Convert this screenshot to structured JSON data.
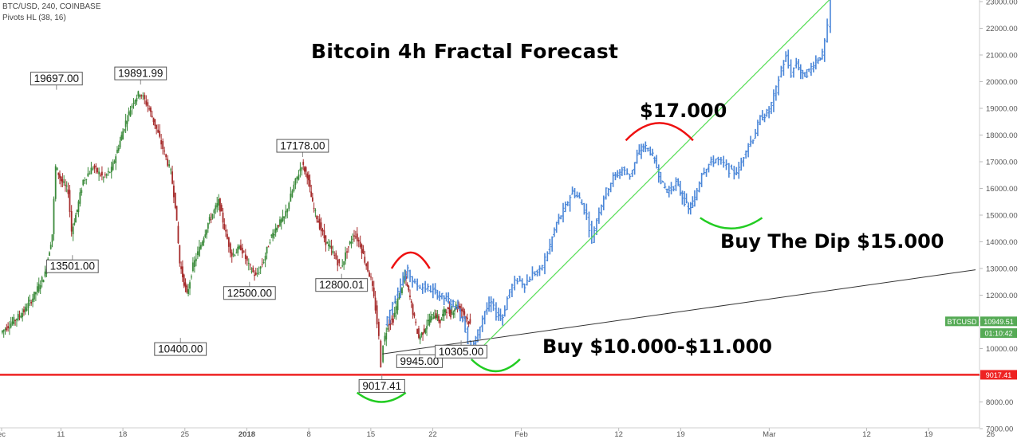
{
  "header": {
    "symbol_line": "BTC/USD, 240, COINBASE",
    "indicator_line": "Pivots HL (38, 16)"
  },
  "chart_data": {
    "type": "candlestick",
    "title": "Bitcoin 4h Fractal Forecast",
    "ylim": [
      6800,
      23000
    ],
    "y_ticks": [
      7000,
      8000,
      9000,
      10000,
      11000,
      12000,
      13000,
      14000,
      15000,
      16000,
      17000,
      18000,
      19000,
      20000,
      21000,
      22000,
      23000
    ],
    "y_tick_labels": [
      "7000.00",
      "8000.00",
      "9000.00",
      "10000.00",
      "11000.00",
      "12000.00",
      "13000.00",
      "14000.00",
      "15000.00",
      "16000.00",
      "17000.00",
      "18000.00",
      "19000.00",
      "20000.00",
      "21000.00",
      "22000.00",
      "23000.00"
    ],
    "x_ticks": [
      {
        "label": "ec",
        "x": 0,
        "bold": false
      },
      {
        "label": "11",
        "x": 6.7,
        "bold": false
      },
      {
        "label": "18",
        "x": 13.7,
        "bold": false
      },
      {
        "label": "25",
        "x": 20.7,
        "bold": false
      },
      {
        "label": "2018",
        "x": 27.7,
        "bold": true
      },
      {
        "label": "8",
        "x": 34.7,
        "bold": false
      },
      {
        "label": "15",
        "x": 41.7,
        "bold": false
      },
      {
        "label": "22",
        "x": 48.7,
        "bold": false
      },
      {
        "label": "Feb",
        "x": 58.7,
        "bold": false
      },
      {
        "label": "12",
        "x": 69.7,
        "bold": false
      },
      {
        "label": "19",
        "x": 76.7,
        "bold": false
      },
      {
        "label": "Mar",
        "x": 86.7,
        "bold": false
      },
      {
        "label": "12",
        "x": 97.7,
        "bold": false
      },
      {
        "label": "19",
        "x": 104.7,
        "bold": false
      },
      {
        "label": "26",
        "x": 111.7,
        "bold": false
      }
    ],
    "price_path": [
      [
        0.0,
        10600
      ],
      [
        1.3,
        11000
      ],
      [
        2.6,
        11400
      ],
      [
        3.6,
        11900
      ],
      [
        5.0,
        12800
      ],
      [
        5.8,
        14300
      ],
      [
        6.2,
        16800
      ],
      [
        6.8,
        16300
      ],
      [
        7.6,
        15900
      ],
      [
        8.0,
        14400
      ],
      [
        8.6,
        15200
      ],
      [
        9.3,
        16300
      ],
      [
        10.4,
        16800
      ],
      [
        11.6,
        16400
      ],
      [
        12.5,
        16700
      ],
      [
        13.3,
        17600
      ],
      [
        14.1,
        18500
      ],
      [
        15.0,
        19300
      ],
      [
        15.7,
        19600
      ],
      [
        16.6,
        19100
      ],
      [
        17.4,
        18400
      ],
      [
        18.3,
        17500
      ],
      [
        19.2,
        16600
      ],
      [
        19.7,
        15400
      ],
      [
        20.2,
        13200
      ],
      [
        21.0,
        12000
      ],
      [
        21.7,
        13100
      ],
      [
        22.6,
        13900
      ],
      [
        23.4,
        14700
      ],
      [
        24.6,
        15500
      ],
      [
        25.4,
        14300
      ],
      [
        26.1,
        13500
      ],
      [
        27.1,
        13800
      ],
      [
        28.0,
        13100
      ],
      [
        28.8,
        12700
      ],
      [
        29.7,
        13300
      ],
      [
        30.4,
        14100
      ],
      [
        31.2,
        14600
      ],
      [
        32.0,
        14900
      ],
      [
        33.1,
        16100
      ],
      [
        34.0,
        16900
      ],
      [
        34.6,
        16500
      ],
      [
        35.2,
        15400
      ],
      [
        36.0,
        14600
      ],
      [
        36.7,
        14000
      ],
      [
        37.5,
        13600
      ],
      [
        38.4,
        13000
      ],
      [
        39.1,
        13700
      ],
      [
        39.9,
        14300
      ],
      [
        40.6,
        13900
      ],
      [
        41.1,
        13300
      ],
      [
        41.8,
        12600
      ],
      [
        42.3,
        11500
      ],
      [
        42.7,
        10400
      ],
      [
        42.95,
        9400
      ],
      [
        43.2,
        10200
      ],
      [
        43.7,
        10900
      ],
      [
        44.3,
        11100
      ],
      [
        45.0,
        12000
      ],
      [
        45.6,
        12700
      ],
      [
        46.2,
        11900
      ],
      [
        46.7,
        11100
      ],
      [
        47.2,
        10400
      ],
      [
        47.8,
        10700
      ],
      [
        48.4,
        11100
      ],
      [
        49.0,
        11300
      ],
      [
        49.6,
        11000
      ],
      [
        50.2,
        11500
      ],
      [
        50.8,
        11300
      ],
      [
        51.4,
        11600
      ],
      [
        52.2,
        11400
      ],
      [
        53.0,
        10900
      ]
    ],
    "forecast_path": [
      [
        43.4,
        10900
      ],
      [
        44.3,
        11700
      ],
      [
        45.2,
        12500
      ],
      [
        46.0,
        12900
      ],
      [
        46.8,
        12400
      ],
      [
        47.7,
        12300
      ],
      [
        48.6,
        12200
      ],
      [
        49.6,
        12000
      ],
      [
        50.6,
        11800
      ],
      [
        51.4,
        11600
      ],
      [
        52.2,
        11100
      ],
      [
        52.8,
        10300
      ],
      [
        53.2,
        9900
      ],
      [
        53.9,
        10600
      ],
      [
        54.7,
        11400
      ],
      [
        55.4,
        11700
      ],
      [
        56.0,
        11300
      ],
      [
        56.7,
        11200
      ],
      [
        57.5,
        12200
      ],
      [
        58.4,
        12600
      ],
      [
        59.2,
        12400
      ],
      [
        60.1,
        12800
      ],
      [
        60.9,
        12900
      ],
      [
        61.8,
        13600
      ],
      [
        62.8,
        14700
      ],
      [
        63.8,
        15300
      ],
      [
        64.6,
        15900
      ],
      [
        65.4,
        15600
      ],
      [
        66.2,
        15000
      ],
      [
        66.8,
        14100
      ],
      [
        67.6,
        15200
      ],
      [
        68.4,
        15900
      ],
      [
        69.2,
        16400
      ],
      [
        70.2,
        16700
      ],
      [
        71.1,
        16500
      ],
      [
        71.9,
        17200
      ],
      [
        72.6,
        17600
      ],
      [
        73.4,
        17400
      ],
      [
        74.1,
        16800
      ],
      [
        74.8,
        16100
      ],
      [
        75.5,
        15900
      ],
      [
        76.3,
        16200
      ],
      [
        77.0,
        15700
      ],
      [
        77.7,
        15200
      ],
      [
        78.4,
        15600
      ],
      [
        79.2,
        16600
      ],
      [
        80.0,
        16900
      ],
      [
        80.8,
        17100
      ],
      [
        81.7,
        16900
      ],
      [
        82.6,
        16600
      ],
      [
        83.4,
        16700
      ],
      [
        84.2,
        17500
      ],
      [
        85.0,
        17900
      ],
      [
        85.8,
        18600
      ],
      [
        86.8,
        18900
      ],
      [
        87.6,
        19700
      ],
      [
        88.2,
        20500
      ],
      [
        88.7,
        20900
      ],
      [
        89.3,
        20300
      ],
      [
        89.9,
        20700
      ],
      [
        90.6,
        20200
      ],
      [
        91.3,
        20400
      ],
      [
        92.1,
        20800
      ],
      [
        92.8,
        21000
      ],
      [
        93.4,
        22000
      ],
      [
        93.8,
        23100
      ]
    ],
    "pivot_labels": [
      {
        "text": "19697.00",
        "x": 6.2,
        "y": 19697,
        "side": "above"
      },
      {
        "text": "19891.99",
        "x": 15.7,
        "y": 19892,
        "side": "above"
      },
      {
        "text": "17178.00",
        "x": 34.0,
        "y": 17178,
        "side": "above"
      },
      {
        "text": "13501.00",
        "x": 8.0,
        "y": 13501,
        "side": "below"
      },
      {
        "text": "10400.00",
        "x": 20.2,
        "y": 10400,
        "side": "below"
      },
      {
        "text": "12500.00",
        "x": 28.0,
        "y": 12500,
        "side": "below"
      },
      {
        "text": "12800.01",
        "x": 38.4,
        "y": 12800,
        "side": "below"
      },
      {
        "text": "9017.41",
        "x": 42.95,
        "y": 9017,
        "side": "below"
      },
      {
        "text": "9945.00",
        "x": 47.2,
        "y": 9945,
        "side": "below"
      },
      {
        "text": "10305.00",
        "x": 51.9,
        "y": 10305,
        "side": "below"
      }
    ],
    "support_level": 9017.41,
    "trend_line_black": [
      [
        43.0,
        9800
      ],
      [
        110.0,
        12950
      ]
    ],
    "trend_line_green": [
      [
        53.2,
        9700
      ],
      [
        93.9,
        23200
      ]
    ],
    "arcs": [
      {
        "color": "#22cc22",
        "x": 42.9,
        "y": 8350,
        "w": 5.5,
        "h": 350,
        "dir": "smile"
      },
      {
        "color": "#ee1111",
        "x": 46.2,
        "y": 13000,
        "w": 4.3,
        "h": 600,
        "dir": "frown"
      },
      {
        "color": "#22cc22",
        "x": 55.8,
        "y": 9600,
        "w": 5.5,
        "h": 450,
        "dir": "smile"
      },
      {
        "color": "#ee1111",
        "x": 74.3,
        "y": 17800,
        "w": 7.6,
        "h": 650,
        "dir": "frown"
      },
      {
        "color": "#22cc22",
        "x": 82.4,
        "y": 14900,
        "w": 7.0,
        "h": 400,
        "dir": "smile"
      }
    ],
    "annotations": {
      "a1": "$17.000",
      "a2": "Buy The Dip $15.000",
      "a3": "Buy $10.000-$11.000"
    },
    "price_tags": [
      {
        "text": "BTCUSD",
        "bg": "#55aa55"
      },
      {
        "text": "10949.51",
        "bg": "#55aa55"
      },
      {
        "text": "01:10:42",
        "bg": "#55aa55"
      },
      {
        "text": "9017.41",
        "bg": "#ee2222"
      }
    ],
    "colors": {
      "up": "#3a8a3a",
      "down": "#a52a2a",
      "forecast": "#4a86d8",
      "support": "#ee2222",
      "trend_green": "#55dd55",
      "trend_black": "#333333"
    }
  }
}
